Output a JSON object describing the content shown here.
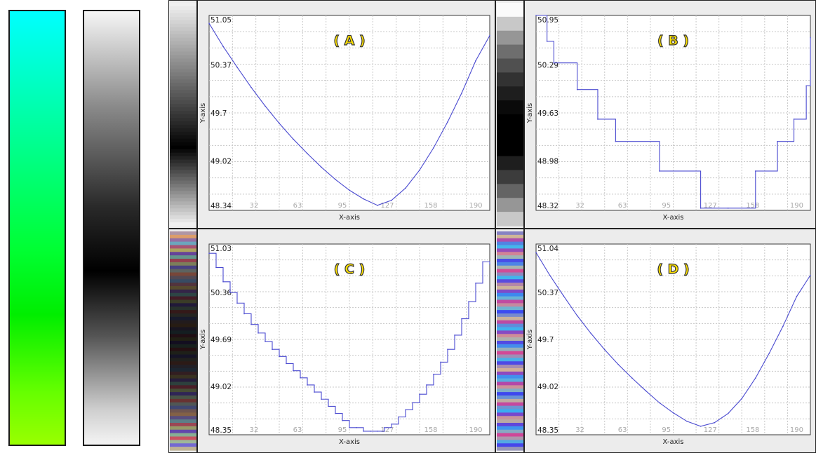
{
  "colors": {
    "line": "#4a4ad0",
    "grid": "#c8c8c8",
    "frame": "#3a3a3a",
    "label_fill": "#ffe100",
    "label_stroke": "#333333"
  },
  "chart_data": [
    {
      "id": "A",
      "type": "line",
      "panel_label": "( A )",
      "xlabel": "X-axis",
      "ylabel": "Y-axis",
      "xlim": [
        0,
        200
      ],
      "ylim": [
        48.34,
        51.05
      ],
      "xticks": [
        "32",
        "63",
        "95",
        "127",
        "158",
        "190"
      ],
      "yticks": [
        "51.05",
        "50.37",
        "49.7",
        "49.02",
        "48.34"
      ],
      "grid": true,
      "step": false,
      "colorbar": "smooth-gray",
      "x": [
        0,
        10,
        20,
        30,
        40,
        50,
        60,
        70,
        80,
        90,
        100,
        110,
        120,
        130,
        140,
        150,
        160,
        170,
        180,
        190,
        200
      ],
      "y": [
        50.94,
        50.62,
        50.33,
        50.05,
        49.79,
        49.55,
        49.33,
        49.13,
        48.94,
        48.77,
        48.62,
        48.5,
        48.41,
        48.48,
        48.65,
        48.9,
        49.21,
        49.57,
        49.97,
        50.42,
        50.77
      ]
    },
    {
      "id": "B",
      "type": "line",
      "panel_label": "( B )",
      "xlabel": "X-axis",
      "ylabel": "Y-axis",
      "xlim": [
        0,
        200
      ],
      "ylim": [
        48.32,
        50.95
      ],
      "xticks": [
        "32",
        "63",
        "95",
        "127",
        "158",
        "190"
      ],
      "yticks": [
        "50.95",
        "50.29",
        "49.63",
        "48.98",
        "48.32"
      ],
      "grid": true,
      "step": true,
      "colorbar": "banded-gray",
      "x": [
        0,
        8,
        13,
        30,
        45,
        58,
        90,
        120,
        140,
        160,
        176,
        188,
        197,
        200
      ],
      "y": [
        50.95,
        50.6,
        50.31,
        49.95,
        49.55,
        49.25,
        48.85,
        48.35,
        48.35,
        48.85,
        49.25,
        49.55,
        50.0,
        50.65
      ]
    },
    {
      "id": "C",
      "type": "line",
      "panel_label": "( C )",
      "xlabel": "X-axis",
      "ylabel": "Y-axis",
      "xlim": [
        0,
        200
      ],
      "ylim": [
        48.35,
        51.03
      ],
      "xticks": [
        "32",
        "63",
        "95",
        "127",
        "158",
        "190"
      ],
      "yticks": [
        "51.03",
        "50.36",
        "49.69",
        "49.02",
        "48.35"
      ],
      "grid": true,
      "step": true,
      "colorbar": "multicolor-dark",
      "x": [
        0,
        5,
        10,
        15,
        20,
        25,
        30,
        35,
        40,
        45,
        50,
        55,
        60,
        65,
        70,
        75,
        80,
        85,
        90,
        95,
        100,
        105,
        110,
        115,
        120,
        125,
        130,
        135,
        140,
        145,
        150,
        155,
        160,
        165,
        170,
        175,
        180,
        185,
        190,
        195,
        200
      ],
      "y": [
        50.9,
        50.7,
        50.5,
        50.35,
        50.2,
        50.05,
        49.9,
        49.78,
        49.66,
        49.55,
        49.45,
        49.35,
        49.25,
        49.15,
        49.05,
        48.95,
        48.85,
        48.75,
        48.65,
        48.55,
        48.45,
        48.45,
        48.4,
        48.4,
        48.4,
        48.45,
        48.5,
        48.6,
        48.7,
        48.8,
        48.92,
        49.05,
        49.2,
        49.37,
        49.55,
        49.75,
        49.98,
        50.22,
        50.48,
        50.78,
        50.75
      ]
    },
    {
      "id": "D",
      "type": "line",
      "panel_label": "( D )",
      "xlabel": "X-axis",
      "ylabel": "Y-axis",
      "xlim": [
        0,
        200
      ],
      "ylim": [
        48.35,
        51.04
      ],
      "xticks": [
        "32",
        "63",
        "95",
        "127",
        "158",
        "190"
      ],
      "yticks": [
        "51.04",
        "50.37",
        "49.7",
        "49.02",
        "48.35"
      ],
      "grid": true,
      "step": false,
      "colorbar": "multicolor-light",
      "x": [
        0,
        10,
        20,
        30,
        40,
        50,
        60,
        70,
        80,
        90,
        100,
        110,
        120,
        130,
        140,
        150,
        160,
        170,
        180,
        190,
        200
      ],
      "y": [
        50.92,
        50.6,
        50.31,
        50.03,
        49.78,
        49.55,
        49.34,
        49.15,
        48.97,
        48.8,
        48.66,
        48.54,
        48.47,
        48.52,
        48.65,
        48.86,
        49.15,
        49.5,
        49.88,
        50.3,
        50.6
      ]
    }
  ]
}
